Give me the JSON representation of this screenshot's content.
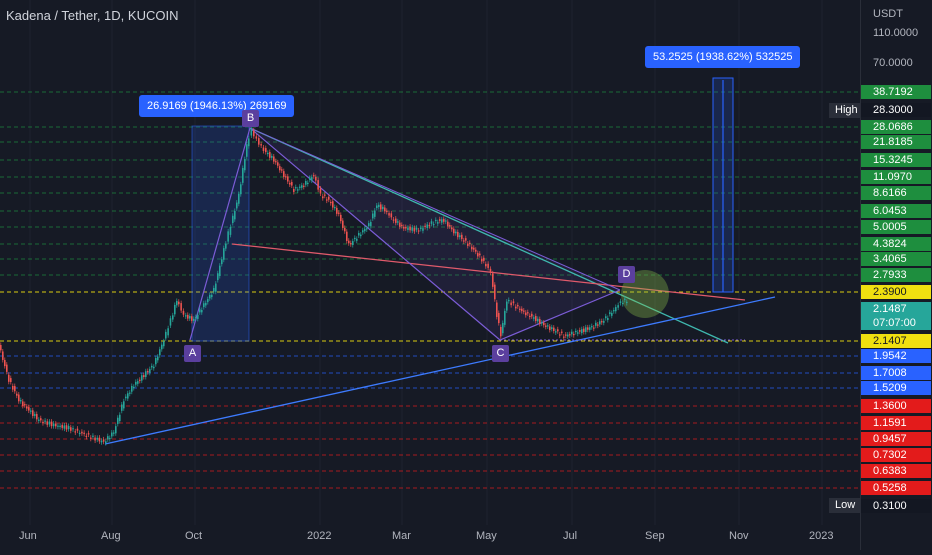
{
  "header": {
    "title": "Kadena / Tether, 1D, KUCOIN"
  },
  "price_axis": {
    "currency": "USDT",
    "plain_levels": [
      "110.0000",
      "70.0000"
    ],
    "labels": [
      {
        "text": "38.7192",
        "color": "#1e8e3e"
      },
      {
        "text": "28.3000",
        "color": "#131722"
      },
      {
        "text": "28.0686",
        "color": "#1e8e3e"
      },
      {
        "text": "21.8185",
        "color": "#1e8e3e"
      },
      {
        "text": "15.3245",
        "color": "#1e8e3e"
      },
      {
        "text": "11.0970",
        "color": "#1e8e3e"
      },
      {
        "text": "8.6166",
        "color": "#1e8e3e"
      },
      {
        "text": "6.0453",
        "color": "#1e8e3e"
      },
      {
        "text": "5.0005",
        "color": "#1e8e3e"
      },
      {
        "text": "4.3824",
        "color": "#1e8e3e"
      },
      {
        "text": "3.4065",
        "color": "#1e8e3e"
      },
      {
        "text": "2.7933",
        "color": "#1e8e3e"
      },
      {
        "text": "2.3900",
        "color": "#f0e010"
      },
      {
        "text": "2.1487",
        "color": "#26a69a"
      },
      {
        "text": "07:07:00",
        "color": "#26a69a"
      },
      {
        "text": "2.1407",
        "color": "#f0e010"
      },
      {
        "text": "1.9542",
        "color": "#2962ff"
      },
      {
        "text": "1.7008",
        "color": "#2962ff"
      },
      {
        "text": "1.5209",
        "color": "#2962ff"
      },
      {
        "text": "1.3600",
        "color": "#e31b1b"
      },
      {
        "text": "1.1591",
        "color": "#e31b1b"
      },
      {
        "text": "0.9457",
        "color": "#e31b1b"
      },
      {
        "text": "0.7302",
        "color": "#e31b1b"
      },
      {
        "text": "0.6383",
        "color": "#e31b1b"
      },
      {
        "text": "0.5258",
        "color": "#e31b1b"
      },
      {
        "text": "0.3100",
        "color": "#131722"
      }
    ],
    "high_tag": "High",
    "low_tag": "Low"
  },
  "time_axis": [
    "Jun",
    "Aug",
    "Oct",
    "2022",
    "Mar",
    "May",
    "Jul",
    "Sep",
    "Nov",
    "2023"
  ],
  "measure_tips": {
    "first": "26.9169 (1946.13%) 269169",
    "second": "53.2525 (1938.62%) 532525"
  },
  "pattern_points": [
    "A",
    "B",
    "C",
    "D"
  ],
  "colors": {
    "background": "#161a25",
    "up_candle": "#26a69a",
    "down_candle": "#ef5350",
    "green_level": "#1e8e3e",
    "red_level": "#e31b1b",
    "blue_level": "#2962ff",
    "yellow_level": "#f0e010",
    "teal_line": "#3fb8af",
    "red_line": "#e05a6b",
    "blue_line": "#3d7bff",
    "purple_line": "#7b5cd6"
  }
}
